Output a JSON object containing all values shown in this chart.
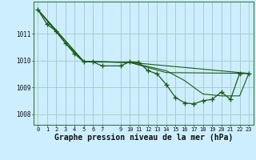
{
  "background_color": "#cceeff",
  "grid_color": "#aacccc",
  "line_color": "#1a5c1a",
  "marker_color": "#1a5c1a",
  "xlabel": "Graphe pression niveau de la mer (hPa)",
  "xlabel_fontsize": 7,
  "xlim": [
    -0.5,
    23.5
  ],
  "ylim": [
    1007.6,
    1012.2
  ],
  "yticks": [
    1008,
    1009,
    1010,
    1011
  ],
  "xticks": [
    0,
    1,
    2,
    3,
    4,
    5,
    6,
    7,
    9,
    10,
    11,
    12,
    13,
    14,
    15,
    16,
    17,
    18,
    19,
    20,
    21,
    22,
    23
  ],
  "series": [
    [
      0,
      1011.9
    ],
    [
      1,
      1011.35
    ],
    [
      2,
      1011.1
    ],
    [
      3,
      1010.65
    ],
    [
      4,
      1010.25
    ],
    [
      5,
      1009.95
    ],
    [
      6,
      1009.95
    ],
    [
      7,
      1009.8
    ],
    [
      9,
      1009.8
    ],
    [
      10,
      1009.95
    ],
    [
      11,
      1009.93
    ],
    [
      12,
      1009.62
    ],
    [
      13,
      1009.5
    ],
    [
      14,
      1009.1
    ],
    [
      15,
      1008.62
    ],
    [
      16,
      1008.42
    ],
    [
      17,
      1008.38
    ],
    [
      18,
      1008.5
    ],
    [
      19,
      1008.55
    ],
    [
      20,
      1008.82
    ],
    [
      21,
      1008.55
    ],
    [
      22,
      1009.52
    ],
    [
      23,
      1009.52
    ]
  ],
  "line2": [
    [
      0,
      1011.9
    ],
    [
      3,
      1010.65
    ],
    [
      5,
      1009.97
    ],
    [
      10,
      1009.93
    ],
    [
      14,
      1009.62
    ],
    [
      16,
      1009.25
    ],
    [
      17,
      1009.0
    ],
    [
      18,
      1008.75
    ],
    [
      20,
      1008.68
    ],
    [
      22,
      1008.68
    ],
    [
      23,
      1009.52
    ]
  ],
  "line3": [
    [
      0,
      1011.9
    ],
    [
      5,
      1009.95
    ],
    [
      10,
      1009.93
    ],
    [
      14,
      1009.55
    ],
    [
      23,
      1009.52
    ]
  ],
  "line4": [
    [
      0,
      1011.9
    ],
    [
      5,
      1009.97
    ],
    [
      10,
      1009.93
    ],
    [
      23,
      1009.52
    ]
  ]
}
